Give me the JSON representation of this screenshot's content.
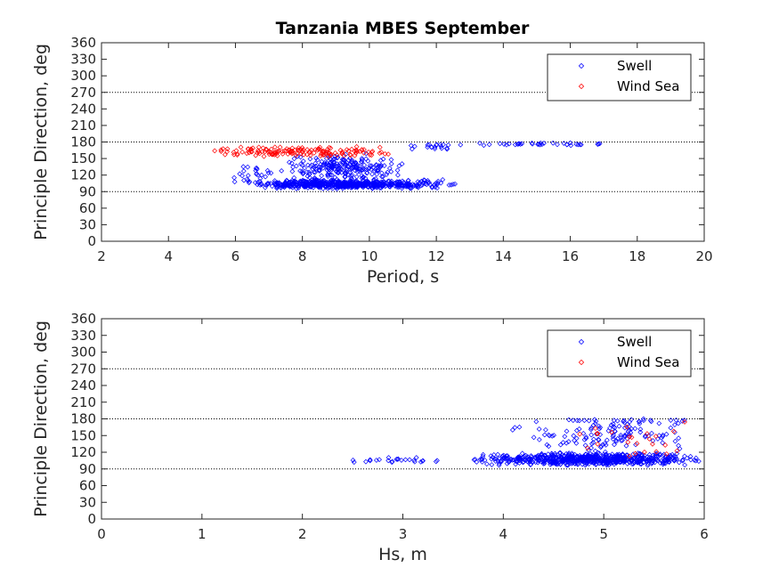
{
  "chart_data": [
    {
      "type": "scatter",
      "title": "Tanzania MBES September",
      "xlabel": "Period, s",
      "ylabel": "Principle Direction, deg",
      "xlim": [
        2,
        20
      ],
      "ylim": [
        0,
        360
      ],
      "xticks": [
        2,
        4,
        6,
        8,
        10,
        12,
        14,
        16,
        18,
        20
      ],
      "yticks": [
        0,
        30,
        60,
        90,
        120,
        150,
        180,
        210,
        240,
        270,
        300,
        330,
        360
      ],
      "reference_lines": [
        90,
        180,
        270
      ],
      "legend": {
        "placement": "top-right",
        "entries": [
          "Swell",
          "Wind Sea"
        ]
      },
      "series": [
        {
          "name": "Swell",
          "color": "#0000ff",
          "marker": "diamond",
          "clusters": [
            {
              "x_range": [
                6.5,
                12.2
              ],
              "x_center": 9.3,
              "y_range": [
                95,
                112
              ],
              "y_center": 103,
              "count": 600
            },
            {
              "x_range": [
                7.5,
                11.2
              ],
              "x_center": 9.2,
              "y_range": [
                110,
                160
              ],
              "y_center": 130,
              "count": 220
            },
            {
              "x_range": [
                5.6,
                7.5
              ],
              "x_center": 6.6,
              "y_range": [
                95,
                155
              ],
              "y_center": 120,
              "count": 30
            },
            {
              "x_range": [
                11.0,
                13.0
              ],
              "x_center": 12.0,
              "y_range": [
                165,
                178
              ],
              "y_center": 172,
              "count": 20
            },
            {
              "x_range": [
                13.0,
                17.6
              ],
              "x_center": 15.0,
              "y_range": [
                173,
                179
              ],
              "y_center": 176,
              "count": 35
            },
            {
              "x_range": [
                12.2,
                12.6
              ],
              "x_center": 12.4,
              "y_range": [
                101,
                105
              ],
              "y_center": 103,
              "count": 4
            }
          ]
        },
        {
          "name": "Wind Sea",
          "color": "#ff0000",
          "marker": "diamond",
          "clusters": [
            {
              "x_range": [
                5.0,
                11.0
              ],
              "x_center": 7.7,
              "y_range": [
                152,
                172
              ],
              "y_center": 163,
              "count": 150
            }
          ]
        }
      ]
    },
    {
      "type": "scatter",
      "title": "",
      "xlabel": "Hs, m",
      "ylabel": "Principle Direction, deg",
      "xlim": [
        0,
        6
      ],
      "ylim": [
        0,
        360
      ],
      "xticks": [
        0,
        1,
        2,
        3,
        4,
        5,
        6
      ],
      "yticks": [
        0,
        30,
        60,
        90,
        120,
        150,
        180,
        210,
        240,
        270,
        300,
        330,
        360
      ],
      "reference_lines": [
        90,
        180,
        270
      ],
      "legend": {
        "placement": "top-right",
        "entries": [
          "Swell",
          "Wind Sea"
        ]
      },
      "series": [
        {
          "name": "Swell",
          "color": "#0000ff",
          "marker": "diamond",
          "clusters": [
            {
              "x_range": [
                3.6,
                6.0
              ],
              "x_center": 5.0,
              "y_range": [
                95,
                120
              ],
              "y_center": 106,
              "count": 650
            },
            {
              "x_range": [
                4.0,
                6.0
              ],
              "x_center": 5.1,
              "y_range": [
                115,
                178
              ],
              "y_center": 150,
              "count": 120
            },
            {
              "x_range": [
                2.4,
                3.6
              ],
              "x_center": 3.0,
              "y_range": [
                100,
                112
              ],
              "y_center": 104,
              "count": 25
            },
            {
              "x_range": [
                4.25,
                6.0
              ],
              "x_center": 5.1,
              "y_range": [
                174,
                180
              ],
              "y_center": 177,
              "count": 25
            }
          ]
        },
        {
          "name": "Wind Sea",
          "color": "#ff0000",
          "marker": "diamond",
          "clusters": [
            {
              "x_range": [
                4.5,
                6.0
              ],
              "x_center": 5.4,
              "y_range": [
                100,
                180
              ],
              "y_center": 150,
              "count": 25
            }
          ]
        }
      ]
    }
  ]
}
